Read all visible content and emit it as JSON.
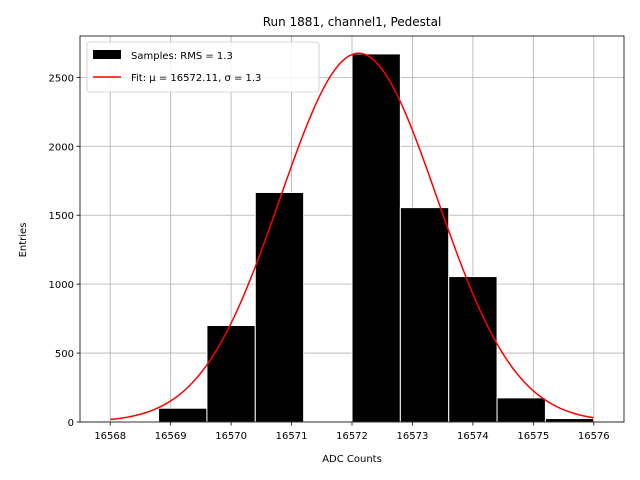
{
  "chart_data": {
    "type": "bar",
    "title": "Run 1881, channel1, Pedestal",
    "xlabel": "ADC Counts",
    "ylabel": "Entries",
    "xlim": [
      16567.5,
      16576.5
    ],
    "ylim": [
      0,
      2800
    ],
    "xticks": [
      16568,
      16569,
      16570,
      16571,
      16572,
      16573,
      16574,
      16575,
      16576
    ],
    "yticks": [
      0,
      500,
      1000,
      1500,
      2000,
      2500
    ],
    "grid": true,
    "legend_position": "top-left",
    "bin_edges": [
      16568.0,
      16568.8,
      16569.6,
      16570.4,
      16571.2,
      16572.0,
      16572.8,
      16573.6,
      16574.4,
      16575.2,
      16576.0
    ],
    "bin_counts": [
      5,
      100,
      700,
      1665,
      0,
      2670,
      1555,
      1055,
      175,
      25
    ],
    "bar_color": "#000000",
    "bar_edge_color": "#ffffff",
    "fit": {
      "amplitude": 2675,
      "mu": 16572.11,
      "sigma": 1.3,
      "color": "#ff0000"
    },
    "legend": [
      {
        "kind": "bar",
        "text": "Samples: RMS = 1.3"
      },
      {
        "kind": "line",
        "text": "Fit: μ = 16572.11, σ = 1.3"
      }
    ]
  }
}
